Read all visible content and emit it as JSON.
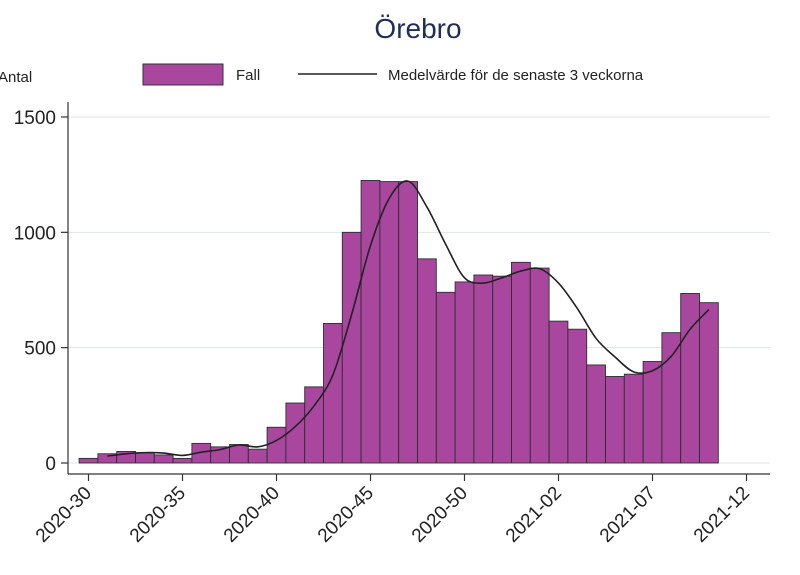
{
  "chart_data": {
    "type": "bar",
    "title": "Örebro",
    "ylabel": "Antal",
    "xlabel": "",
    "ylim": [
      0,
      1500
    ],
    "yticks": [
      0,
      500,
      1000,
      1500
    ],
    "grid": true,
    "legend_position": "top",
    "x_tick_labels": [
      "2020-30",
      "2020-35",
      "2020-40",
      "2020-45",
      "2020-50",
      "2021-02",
      "2021-07",
      "2021-12"
    ],
    "weeks": [
      "2020-30",
      "2020-31",
      "2020-32",
      "2020-33",
      "2020-34",
      "2020-35",
      "2020-36",
      "2020-37",
      "2020-38",
      "2020-39",
      "2020-40",
      "2020-41",
      "2020-42",
      "2020-43",
      "2020-44",
      "2020-45",
      "2020-46",
      "2020-47",
      "2020-48",
      "2020-49",
      "2020-50",
      "2020-51",
      "2020-52",
      "2020-53",
      "2021-01",
      "2021-02",
      "2021-03",
      "2021-04",
      "2021-05",
      "2021-06",
      "2021-07",
      "2021-08",
      "2021-09",
      "2021-10",
      "2021-11"
    ],
    "series": [
      {
        "name": "Fall",
        "kind": "bar",
        "color": "#a9479f",
        "values": [
          20,
          40,
          50,
          45,
          35,
          20,
          85,
          70,
          80,
          60,
          155,
          260,
          330,
          605,
          1000,
          1225,
          1220,
          1220,
          885,
          740,
          785,
          815,
          810,
          870,
          845,
          615,
          580,
          425,
          375,
          385,
          440,
          565,
          735,
          695,
          0
        ]
      },
      {
        "name": "Medelvärde för de senaste 3 veckorna",
        "kind": "line",
        "color": "#222222",
        "values": [
          null,
          30,
          40,
          45,
          43,
          33,
          47,
          58,
          78,
          70,
          98,
          158,
          248,
          382,
          645,
          943,
          1148,
          1222,
          1110,
          948,
          803,
          780,
          803,
          832,
          842,
          780,
          670,
          540,
          460,
          395,
          400,
          463,
          580,
          665,
          null
        ]
      }
    ]
  }
}
